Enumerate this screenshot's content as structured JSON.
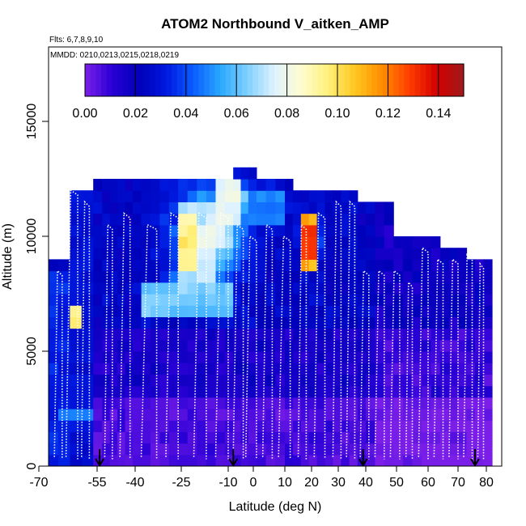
{
  "chart_data": {
    "type": "heatmap",
    "title": "ATOM2 Northbound V_aitken_AMP",
    "flights_note": "Flts: 6,7,8,9,10",
    "mmdd_note": "MMDD: 0210,0213,0215,0218,0219",
    "xlabel": "Latitude (deg N)",
    "ylabel": "Altitude (m)",
    "xlim": [
      -70,
      85
    ],
    "ylim": [
      0,
      18000
    ],
    "x_ticks": [
      -70,
      -55,
      -40,
      -25,
      -10,
      0,
      10,
      20,
      30,
      40,
      50,
      60,
      70,
      80
    ],
    "x_tick_labels": [
      "-70",
      "-55",
      "-40",
      "-25",
      "-10",
      "0",
      "10",
      "20",
      "30",
      "40",
      "50",
      "60",
      "70",
      "80"
    ],
    "y_ticks": [
      0,
      5000,
      10000,
      15000
    ],
    "y_tick_labels": [
      "0",
      "5000",
      "10000",
      "15000"
    ],
    "colorbar": {
      "min": 0.0,
      "max": 0.15,
      "ticks": [
        0.0,
        0.02,
        0.04,
        0.06,
        0.08,
        0.1,
        0.12,
        0.14
      ],
      "tick_labels": [
        "0.00",
        "0.02",
        "0.04",
        "0.06",
        "0.08",
        "0.10",
        "0.12",
        "0.14"
      ],
      "colors": [
        "#7b1fe8",
        "#2a00d6",
        "#0000b8",
        "#0018e0",
        "#0a5cff",
        "#29a8ff",
        "#7fd0ff",
        "#dff2ff",
        "#fffcd0",
        "#fff07a",
        "#ffc61e",
        "#ff8c00",
        "#ff3c00",
        "#d40000",
        "#9e1b1b"
      ]
    },
    "cell_size": {
      "lat": 3,
      "alt": 500
    },
    "profile_arrows_lat": [
      -54,
      -8,
      39,
      76
    ],
    "data_features": [
      {
        "lat_range": [
          -68,
          -64
        ],
        "alt_range": [
          0,
          8500
        ],
        "value": 0.035
      },
      {
        "lat_range": [
          -62,
          -58
        ],
        "alt_range": [
          0,
          12000
        ],
        "value": 0.03
      },
      {
        "lat_range": [
          -66,
          -58
        ],
        "alt_range": [
          2000,
          2500
        ],
        "value": 0.05
      },
      {
        "lat_range": [
          -64,
          -61
        ],
        "alt_range": [
          6000,
          7000
        ],
        "value": 0.1
      },
      {
        "lat_range": [
          -20,
          10
        ],
        "alt_range": [
          10500,
          12000
        ],
        "value": 0.05
      },
      {
        "lat_range": [
          -28,
          -16
        ],
        "alt_range": [
          8000,
          11500
        ],
        "value": 0.075
      },
      {
        "lat_range": [
          -26,
          -22
        ],
        "alt_range": [
          8500,
          11000
        ],
        "value": 0.1
      },
      {
        "lat_range": [
          -15,
          -7
        ],
        "alt_range": [
          10500,
          12500
        ],
        "value": 0.08
      },
      {
        "lat_range": [
          14,
          22
        ],
        "alt_range": [
          8500,
          11000
        ],
        "value": 0.115
      },
      {
        "lat_range": [
          16,
          20
        ],
        "alt_range": [
          9000,
          10500
        ],
        "value": 0.135
      },
      {
        "lat_range": [
          -40,
          -10
        ],
        "alt_range": [
          6500,
          8000
        ],
        "value": 0.065
      }
    ]
  }
}
